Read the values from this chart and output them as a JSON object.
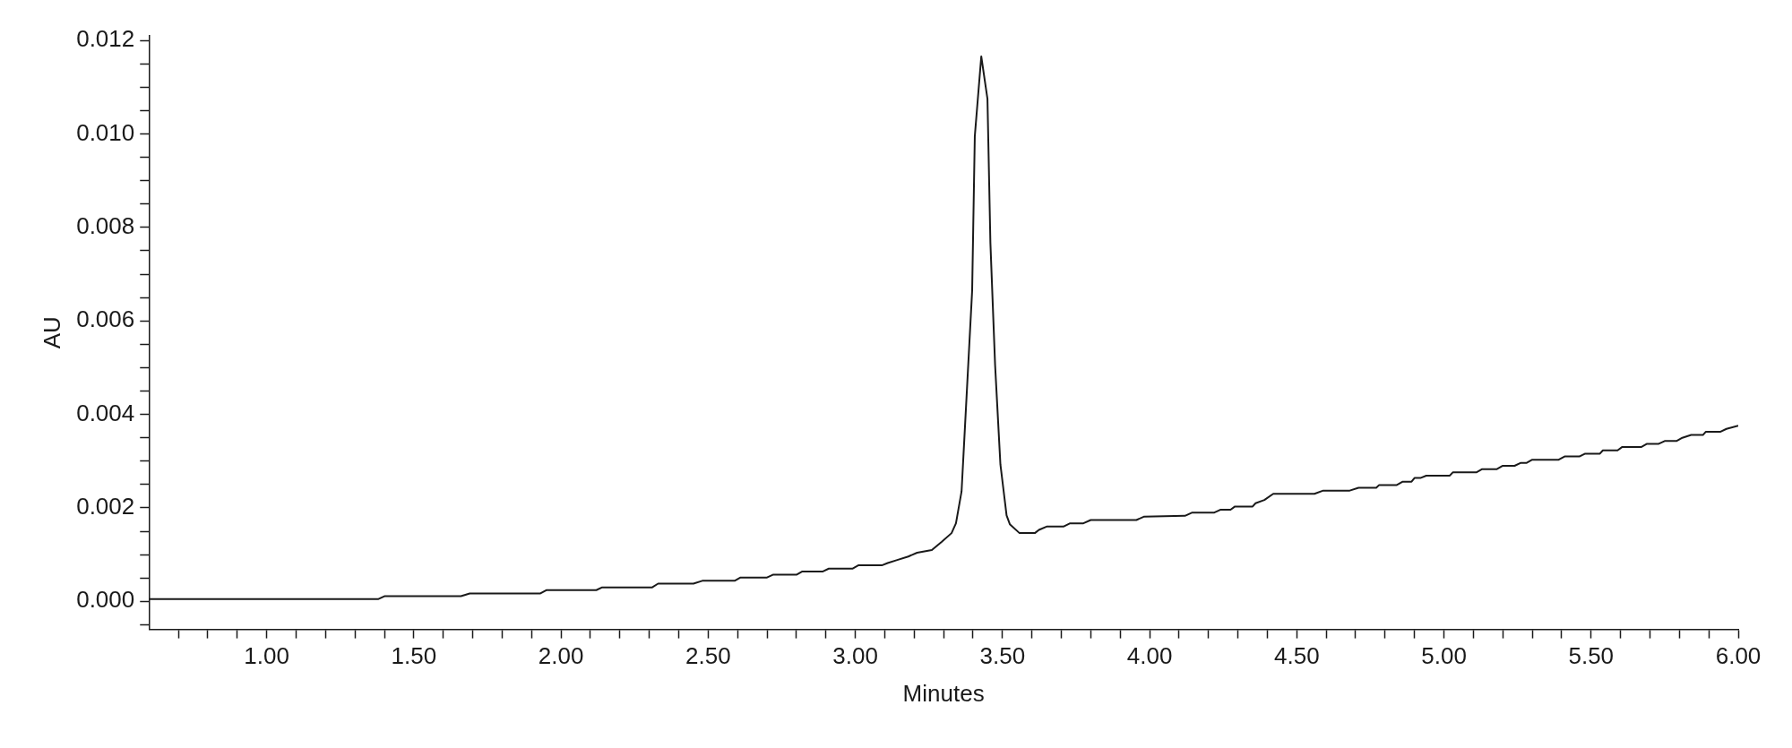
{
  "chart_data": {
    "type": "line",
    "xlabel": "Minutes",
    "ylabel": "AU",
    "grid": false,
    "legend": false,
    "marker": "none",
    "line_style": "solid",
    "xlim": [
      0.6,
      6.0
    ],
    "ylim": [
      -0.0006,
      0.0121
    ],
    "xticks": [
      {
        "value": 0.7,
        "label": null
      },
      {
        "value": 0.8,
        "label": null
      },
      {
        "value": 0.9,
        "label": null
      },
      {
        "value": 1.0,
        "label": "1.00"
      },
      {
        "value": 1.1,
        "label": null
      },
      {
        "value": 1.2,
        "label": null
      },
      {
        "value": 1.3,
        "label": null
      },
      {
        "value": 1.4,
        "label": null
      },
      {
        "value": 1.5,
        "label": "1.50"
      },
      {
        "value": 1.6,
        "label": null
      },
      {
        "value": 1.7,
        "label": null
      },
      {
        "value": 1.8,
        "label": null
      },
      {
        "value": 1.9,
        "label": null
      },
      {
        "value": 2.0,
        "label": "2.00"
      },
      {
        "value": 2.1,
        "label": null
      },
      {
        "value": 2.2,
        "label": null
      },
      {
        "value": 2.3,
        "label": null
      },
      {
        "value": 2.4,
        "label": null
      },
      {
        "value": 2.5,
        "label": "2.50"
      },
      {
        "value": 2.6,
        "label": null
      },
      {
        "value": 2.7,
        "label": null
      },
      {
        "value": 2.8,
        "label": null
      },
      {
        "value": 2.9,
        "label": null
      },
      {
        "value": 3.0,
        "label": "3.00"
      },
      {
        "value": 3.1,
        "label": null
      },
      {
        "value": 3.2,
        "label": null
      },
      {
        "value": 3.3,
        "label": null
      },
      {
        "value": 3.4,
        "label": null
      },
      {
        "value": 3.5,
        "label": "3.50"
      },
      {
        "value": 3.6,
        "label": null
      },
      {
        "value": 3.7,
        "label": null
      },
      {
        "value": 3.8,
        "label": null
      },
      {
        "value": 3.9,
        "label": null
      },
      {
        "value": 4.0,
        "label": "4.00"
      },
      {
        "value": 4.1,
        "label": null
      },
      {
        "value": 4.2,
        "label": null
      },
      {
        "value": 4.3,
        "label": null
      },
      {
        "value": 4.4,
        "label": null
      },
      {
        "value": 4.5,
        "label": "4.50"
      },
      {
        "value": 4.6,
        "label": null
      },
      {
        "value": 4.7,
        "label": null
      },
      {
        "value": 4.8,
        "label": null
      },
      {
        "value": 4.9,
        "label": null
      },
      {
        "value": 5.0,
        "label": "5.00"
      },
      {
        "value": 5.1,
        "label": null
      },
      {
        "value": 5.2,
        "label": null
      },
      {
        "value": 5.3,
        "label": null
      },
      {
        "value": 5.4,
        "label": null
      },
      {
        "value": 5.5,
        "label": "5.50"
      },
      {
        "value": 5.6,
        "label": null
      },
      {
        "value": 5.7,
        "label": null
      },
      {
        "value": 5.8,
        "label": null
      },
      {
        "value": 5.9,
        "label": null
      },
      {
        "value": 6.0,
        "label": "6.00"
      }
    ],
    "yticks": [
      {
        "value": -0.0005,
        "label": null
      },
      {
        "value": 0,
        "label": "0.000"
      },
      {
        "value": 0.0005,
        "label": null
      },
      {
        "value": 0.001,
        "label": null
      },
      {
        "value": 0.0015,
        "label": null
      },
      {
        "value": 0.002,
        "label": "0.002"
      },
      {
        "value": 0.0025,
        "label": null
      },
      {
        "value": 0.003,
        "label": null
      },
      {
        "value": 0.0035,
        "label": null
      },
      {
        "value": 0.004,
        "label": "0.004"
      },
      {
        "value": 0.0045,
        "label": null
      },
      {
        "value": 0.005,
        "label": null
      },
      {
        "value": 0.0055,
        "label": null
      },
      {
        "value": 0.006,
        "label": "0.006"
      },
      {
        "value": 0.0065,
        "label": null
      },
      {
        "value": 0.007,
        "label": null
      },
      {
        "value": 0.0075,
        "label": null
      },
      {
        "value": 0.008,
        "label": "0.008"
      },
      {
        "value": 0.0085,
        "label": null
      },
      {
        "value": 0.009,
        "label": null
      },
      {
        "value": 0.0095,
        "label": null
      },
      {
        "value": 0.01,
        "label": "0.010"
      },
      {
        "value": 0.0105,
        "label": null
      },
      {
        "value": 0.011,
        "label": null
      },
      {
        "value": 0.0115,
        "label": null
      },
      {
        "value": 0.012,
        "label": "0.012"
      }
    ],
    "series": [
      {
        "color": "#1a1a1a",
        "x": [
          0.6,
          1.38,
          1.4,
          1.66,
          1.69,
          1.93,
          1.95,
          2.12,
          2.14,
          2.31,
          2.33,
          2.45,
          2.48,
          2.59,
          2.61,
          2.7,
          2.72,
          2.8,
          2.82,
          2.89,
          2.91,
          2.99,
          3.01,
          3.09,
          3.11,
          3.14,
          3.18,
          3.21,
          3.26,
          3.293,
          3.327,
          3.342,
          3.361,
          3.397,
          3.406,
          3.428,
          3.449,
          3.459,
          3.475,
          3.493,
          3.514,
          3.525,
          3.558,
          3.61,
          3.624,
          3.65,
          3.707,
          3.73,
          3.775,
          3.8,
          3.955,
          3.98,
          4.12,
          4.145,
          4.22,
          4.24,
          4.275,
          4.29,
          4.35,
          4.36,
          4.39,
          4.42,
          4.56,
          4.59,
          4.68,
          4.71,
          4.77,
          4.78,
          4.84,
          4.86,
          4.89,
          4.9,
          4.92,
          4.94,
          5.02,
          5.03,
          5.11,
          5.13,
          5.18,
          5.2,
          5.24,
          5.26,
          5.28,
          5.3,
          5.39,
          5.41,
          5.46,
          5.48,
          5.53,
          5.54,
          5.59,
          5.605,
          5.67,
          5.69,
          5.73,
          5.75,
          5.79,
          5.81,
          5.84,
          5.88,
          5.89,
          5.94,
          5.96,
          6.0
        ],
        "values": [
          5e-05,
          5e-05,
          0.00011,
          0.00011,
          0.00017,
          0.00017,
          0.00024,
          0.00024,
          0.0003,
          0.0003,
          0.00038,
          0.00038,
          0.00044,
          0.00044,
          0.00051,
          0.00051,
          0.00057,
          0.00057,
          0.00064,
          0.00064,
          0.0007,
          0.0007,
          0.00077,
          0.00077,
          0.00082,
          0.00088,
          0.00096,
          0.00104,
          0.0011,
          0.00127,
          0.00146,
          0.00167,
          0.00235,
          0.00665,
          0.00995,
          0.01166,
          0.01075,
          0.00767,
          0.00505,
          0.00293,
          0.00184,
          0.00165,
          0.00146,
          0.00146,
          0.00153,
          0.0016,
          0.0016,
          0.00167,
          0.00167,
          0.00174,
          0.00174,
          0.00181,
          0.00183,
          0.0019,
          0.0019,
          0.00196,
          0.00196,
          0.00203,
          0.00203,
          0.0021,
          0.00217,
          0.0023,
          0.0023,
          0.00237,
          0.00237,
          0.00243,
          0.00243,
          0.00249,
          0.00249,
          0.00256,
          0.00256,
          0.00264,
          0.00264,
          0.00269,
          0.00269,
          0.00276,
          0.00276,
          0.00283,
          0.00283,
          0.0029,
          0.0029,
          0.00296,
          0.00296,
          0.00303,
          0.00303,
          0.0031,
          0.0031,
          0.00316,
          0.00316,
          0.00323,
          0.00323,
          0.0033,
          0.0033,
          0.00337,
          0.00337,
          0.00343,
          0.00343,
          0.0035,
          0.00356,
          0.00356,
          0.00363,
          0.00363,
          0.00369,
          0.00376
        ]
      }
    ]
  }
}
